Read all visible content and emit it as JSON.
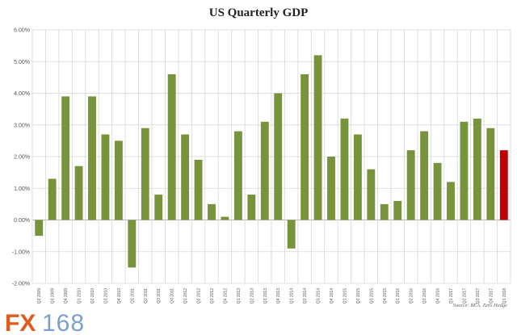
{
  "chart_data": {
    "type": "bar",
    "title": "US Quarterly GDP",
    "categories": [
      "Q2 2009",
      "Q3 2009",
      "Q4 2009",
      "Q1 2010",
      "Q2 2010",
      "Q3 2010",
      "Q4 2010",
      "Q1 2011",
      "Q2 2011",
      "Q3 2011",
      "Q4 2011",
      "Q1 2012",
      "Q2 2012",
      "Q3 2012",
      "Q4 2012",
      "Q1 2013",
      "Q2 2013",
      "Q3 2013",
      "Q4 2013",
      "Q1 2014",
      "Q2 2014",
      "Q3 2014",
      "Q4 2014",
      "Q1 2015",
      "Q2 2015",
      "Q3 2015",
      "Q4 2015",
      "Q1 2016",
      "Q2 2016",
      "Q3 2016",
      "Q4 2016",
      "Q1 2017",
      "Q2 2017",
      "Q3 2017",
      "Q4 2017",
      "Q1 2018"
    ],
    "values": [
      -0.5,
      1.3,
      3.9,
      1.7,
      3.9,
      2.7,
      2.5,
      -1.5,
      2.9,
      0.8,
      4.6,
      2.7,
      1.9,
      0.5,
      0.1,
      2.8,
      0.8,
      3.1,
      4.0,
      -0.9,
      4.6,
      5.2,
      2.0,
      3.2,
      2.7,
      1.6,
      0.5,
      0.6,
      2.2,
      2.8,
      1.8,
      1.2,
      3.1,
      3.2,
      2.9,
      2.2
    ],
    "ylim": [
      -2,
      6
    ],
    "yticks": [
      "-2.00%",
      "-1.00%",
      "0.00%",
      "1.00%",
      "2.00%",
      "3.00%",
      "4.00%",
      "5.00%",
      "6.00%"
    ],
    "ytick_values": [
      -2,
      -1,
      0,
      1,
      2,
      3,
      4,
      5,
      6
    ],
    "grid": "vertical and horizontal",
    "colors": {
      "bar": "#77933c",
      "highlight": "#c00000"
    },
    "highlight_index": 35,
    "source": "Source: BEA, Zero Hedge"
  },
  "watermark": {
    "prefix": "FX",
    "number": "168"
  }
}
